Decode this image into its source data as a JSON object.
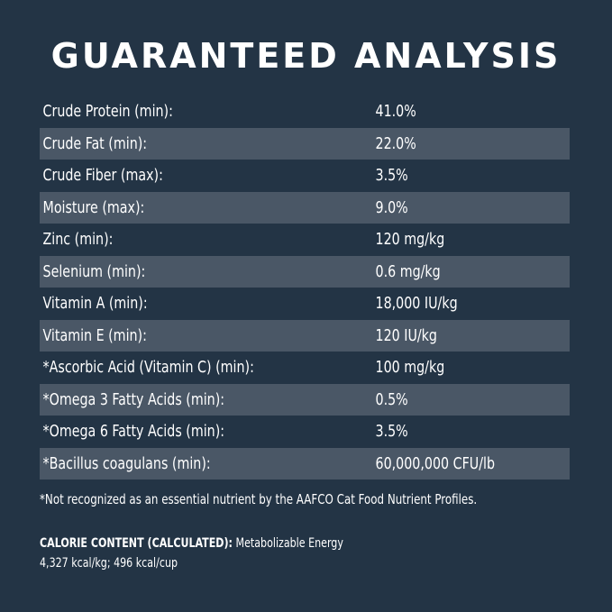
{
  "title": "GUARANTEED ANALYSIS",
  "rows": [
    {
      "label": "Crude Protein (min):",
      "value": "41.0%"
    },
    {
      "label": "Crude Fat (min):",
      "value": "22.0%"
    },
    {
      "label": "Crude Fiber (max):",
      "value": "3.5%"
    },
    {
      "label": "Moisture (max):",
      "value": "9.0%"
    },
    {
      "label": "Zinc (min):",
      "value": "120 mg/kg"
    },
    {
      "label": "Selenium (min):",
      "value": "0.6 mg/kg"
    },
    {
      "label": "Vitamin A (min):",
      "value": "18,000 IU/kg"
    },
    {
      "label": "Vitamin E (min):",
      "value": "120 IU/kg"
    },
    {
      "label": "*Ascorbic Acid (Vitamin C) (min):",
      "value": "100 mg/kg"
    },
    {
      "label": "*Omega 3 Fatty Acids (min):",
      "value": "0.5%"
    },
    {
      "label": "*Omega 6 Fatty Acids (min):",
      "value": "3.5%"
    },
    {
      "label": "*Bacillus coagulans (min):",
      "value": "60,000,000 CFU/lb"
    }
  ],
  "footnote": "*Not recognized as an essential nutrient by the AAFCO Cat Food Nutrient Profiles.",
  "calorie": {
    "heading": "CALORIE CONTENT (CALCULATED):",
    "label": "Metabolizable Energy",
    "values": "4,327 kcal/kg; 496 kcal/cup"
  },
  "colors": {
    "background": "#233445",
    "stripe": "#4a5766",
    "text": "#ffffff"
  }
}
